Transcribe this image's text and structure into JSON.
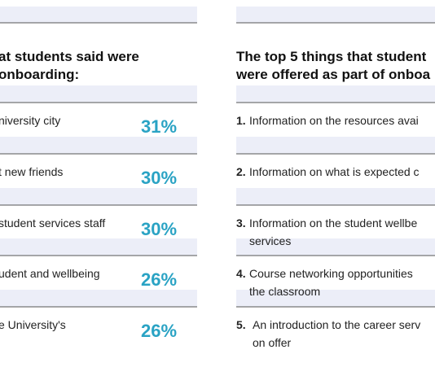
{
  "left": {
    "heading": [
      "at students said were",
      "onboarding:"
    ],
    "rows": [
      {
        "label": "niversity city",
        "percent": "31%"
      },
      {
        "label": "t new friends",
        "percent": "30%"
      },
      {
        "label": "student services staff",
        "percent": "30%"
      },
      {
        "label": "udent and wellbeing",
        "percent": "26%"
      },
      {
        "label": "e University's",
        "percent": "26%"
      }
    ]
  },
  "right": {
    "heading": [
      "The top 5 things that student",
      "were offered as part of onboa"
    ],
    "items": [
      {
        "number": "1.",
        "lines": [
          "Information on the resources avai"
        ]
      },
      {
        "number": "2.",
        "lines": [
          "Information on what is expected c"
        ]
      },
      {
        "number": "3.",
        "lines": [
          "Information on the student wellbe",
          "services"
        ]
      },
      {
        "number": "4.",
        "lines": [
          "Course networking opportunities",
          "the classroom"
        ]
      },
      {
        "number": "5.",
        "lines": [
          "An introduction to the career serv",
          "on offer"
        ]
      }
    ]
  }
}
